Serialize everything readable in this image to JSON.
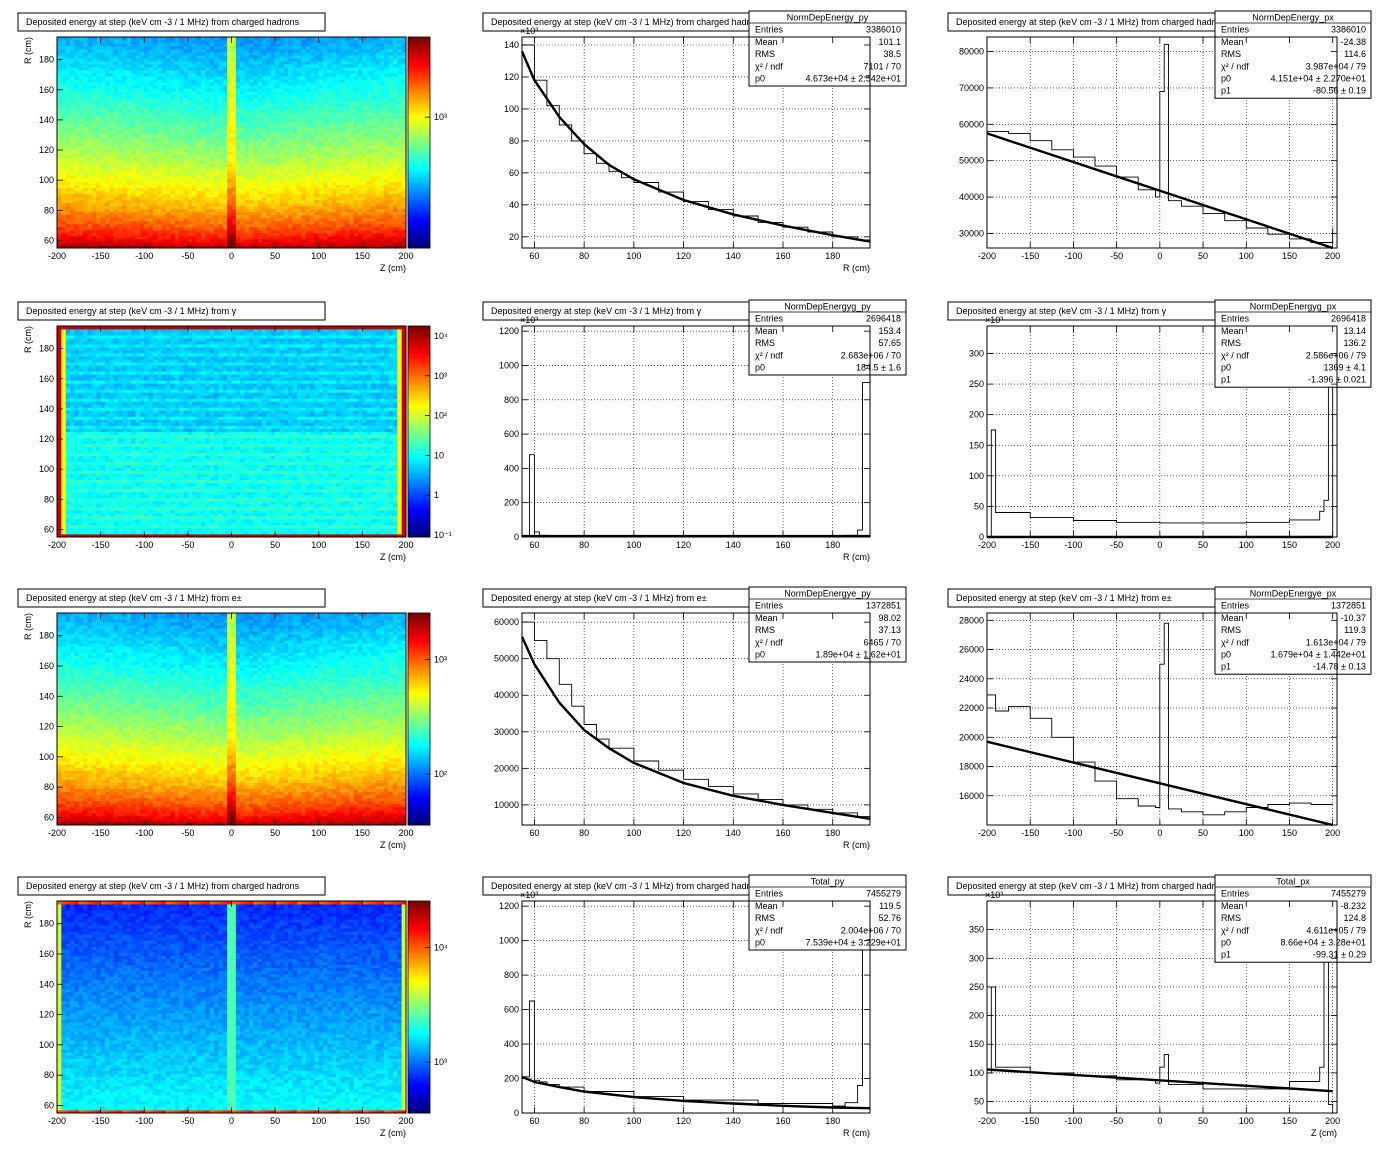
{
  "colors": {
    "frame": "#000000",
    "background": "#ffffff",
    "fit": "#000000"
  },
  "chart_data": [
    {
      "type": "heatmap",
      "panel": "r0c0",
      "title": "Deposited energy at step (keV cm  -3 / 1 MHz)  from   charged hadrons",
      "xlabel": "Z (cm)",
      "ylabel": "R (cm)",
      "xlim": [
        -200,
        200
      ],
      "ylim": [
        55,
        195
      ],
      "xticks": [
        "-200",
        "-150",
        "-100",
        "-50",
        "0",
        "50",
        "100",
        "150",
        "200"
      ],
      "yticks": [
        "60",
        "80",
        "100",
        "120",
        "140",
        "160",
        "180"
      ],
      "zscale": "log",
      "zticklabels": [
        "10³"
      ],
      "pattern": "radial_falloff_with_center_line"
    },
    {
      "type": "line",
      "panel": "r0c1",
      "title": "Deposited energy at step (keV cm  -3 / 1 MHz)  from   charged hadrons",
      "xlabel": "R (cm)",
      "ylabel": "",
      "xlim": [
        55,
        195
      ],
      "ylim": [
        13,
        145
      ],
      "exponent": "×10³",
      "xticks": [
        "60",
        "80",
        "100",
        "120",
        "140",
        "160",
        "180"
      ],
      "yticks": [
        "20",
        "40",
        "60",
        "80",
        "100",
        "120",
        "140"
      ],
      "stats": {
        "name": "NormDepEnergy_py",
        "rows": [
          [
            "Entries",
            "3386010"
          ],
          [
            "Mean",
            "101.1"
          ],
          [
            "RMS",
            "38.5"
          ],
          [
            "χ² / ndf",
            "7101 / 70"
          ],
          [
            "p0",
            "4.673e+04 ± 2.542e+01"
          ]
        ]
      },
      "histogram": {
        "x": [
          55,
          60,
          65,
          70,
          75,
          80,
          85,
          90,
          95,
          100,
          110,
          120,
          130,
          140,
          150,
          160,
          170,
          180,
          190,
          195
        ],
        "y": [
          140,
          118,
          102,
          90,
          80,
          72,
          66,
          61,
          57,
          54,
          48,
          42,
          37,
          33,
          29,
          26,
          23,
          20,
          18,
          17
        ]
      },
      "fit": {
        "x": [
          55,
          60,
          70,
          80,
          90,
          100,
          120,
          140,
          160,
          180,
          195
        ],
        "y": [
          136,
          118,
          95,
          78,
          65,
          56,
          43,
          34,
          27,
          21,
          17
        ]
      }
    },
    {
      "type": "line",
      "panel": "r0c2",
      "title": "Deposited energy at step (keV cm  -3 / 1 MHz)  from   charged hadrons",
      "xlabel": "",
      "ylabel": "",
      "xlim": [
        -200,
        205
      ],
      "ylim": [
        26000,
        84000
      ],
      "xticks": [
        "-200",
        "-150",
        "-100",
        "-50",
        "0",
        "50",
        "100",
        "150",
        "200"
      ],
      "yticks": [
        "30000",
        "40000",
        "50000",
        "60000",
        "70000",
        "80000"
      ],
      "stats": {
        "name": "NormDepEnergy_px",
        "rows": [
          [
            "Entries",
            "3386010"
          ],
          [
            "Mean",
            "-24.38"
          ],
          [
            "RMS",
            "114.6"
          ],
          [
            "χ² / ndf",
            "3.987e+04 / 79"
          ],
          [
            "p0",
            "4.151e+04 ± 2.270e+01"
          ],
          [
            "p1",
            "-80.56 ± 0.19"
          ]
        ]
      },
      "histogram": {
        "x": [
          -200,
          -175,
          -150,
          -125,
          -100,
          -75,
          -50,
          -25,
          -5,
          0,
          5,
          10,
          25,
          50,
          75,
          100,
          125,
          150,
          175,
          200
        ],
        "y": [
          58000,
          57500,
          55500,
          53000,
          51000,
          48500,
          45500,
          42000,
          40000,
          69000,
          82000,
          39000,
          37500,
          35500,
          33500,
          31500,
          29800,
          28500,
          27500,
          31500
        ]
      },
      "fit": {
        "x": [
          -200,
          200
        ],
        "y": [
          57500,
          25500
        ]
      }
    },
    {
      "type": "heatmap",
      "panel": "r1c0",
      "title": "Deposited energy at step (keV cm   -3 / 1 MHz)  from    γ",
      "xlabel": "Z (cm)",
      "ylabel": "R (cm)",
      "xlim": [
        -200,
        200
      ],
      "ylim": [
        55,
        195
      ],
      "xticks": [
        "-200",
        "-150",
        "-100",
        "-50",
        "0",
        "50",
        "100",
        "150",
        "200"
      ],
      "yticks": [
        "60",
        "80",
        "100",
        "120",
        "140",
        "160",
        "180"
      ],
      "zscale": "log",
      "zticklabels": [
        "10⁴",
        "10³",
        "10²",
        "10",
        "1",
        "10⁻¹"
      ],
      "pattern": "uniform_with_hot_border"
    },
    {
      "type": "line",
      "panel": "r1c1",
      "title": "Deposited energy at step (keV cm   -3 / 1 MHz)  from    γ",
      "xlabel": "R (cm)",
      "ylabel": "",
      "xlim": [
        55,
        195
      ],
      "ylim": [
        0,
        1230
      ],
      "exponent": "×10³",
      "xticks": [
        "60",
        "80",
        "100",
        "120",
        "140",
        "160",
        "180"
      ],
      "yticks": [
        "0",
        "200",
        "400",
        "600",
        "800",
        "1000",
        "1200"
      ],
      "stats": {
        "name": "NormDepEnergyg_py",
        "rows": [
          [
            "Entries",
            "2696418"
          ],
          [
            "Mean",
            "153.4"
          ],
          [
            "RMS",
            "57.65"
          ],
          [
            "χ² / ndf",
            "2.683e+06 / 70"
          ],
          [
            "p0",
            "184.5 ± 1.6"
          ]
        ]
      },
      "histogram": {
        "x": [
          55,
          58,
          60,
          62,
          65,
          70,
          100,
          150,
          180,
          185,
          190,
          192,
          195
        ],
        "y": [
          0,
          480,
          30,
          10,
          6,
          5,
          5,
          5,
          5,
          10,
          40,
          900,
          540
        ]
      },
      "fit": {
        "x": [
          55,
          195
        ],
        "y": [
          5,
          5
        ]
      }
    },
    {
      "type": "line",
      "panel": "r1c2",
      "title": "Deposited energy at step (keV cm   -3 / 1 MHz)  from    γ",
      "xlabel": "",
      "ylabel": "",
      "xlim": [
        -200,
        205
      ],
      "ylim": [
        0,
        345
      ],
      "exponent": "×10³",
      "xticks": [
        "-200",
        "-150",
        "-100",
        "-50",
        "0",
        "50",
        "100",
        "150",
        "200"
      ],
      "yticks": [
        "0",
        "50",
        "100",
        "150",
        "200",
        "250",
        "300"
      ],
      "stats": {
        "name": "NormDepEnergyg_px",
        "rows": [
          [
            "Entries",
            "2696418"
          ],
          [
            "Mean",
            "13.14"
          ],
          [
            "RMS",
            "136.2"
          ],
          [
            "χ² / ndf",
            "2.586e+06 / 79"
          ],
          [
            "p0",
            "1369 ± 4.1"
          ],
          [
            "p1",
            "-1.396 ± 0.021"
          ]
        ]
      },
      "histogram": {
        "x": [
          -200,
          -195,
          -190,
          -150,
          -100,
          -50,
          0,
          50,
          100,
          150,
          185,
          190,
          195,
          200
        ],
        "y": [
          0,
          175,
          40,
          32,
          27,
          24,
          23,
          23,
          24,
          28,
          42,
          60,
          340,
          0
        ]
      },
      "fit": {
        "x": [
          -200,
          200
        ],
        "y": [
          0,
          0
        ]
      }
    },
    {
      "type": "heatmap",
      "panel": "r2c0",
      "title": "Deposited energy at step (keV cm   -3 / 1 MHz)  from    e±",
      "xlabel": "Z (cm)",
      "ylabel": "R (cm)",
      "xlim": [
        -200,
        200
      ],
      "ylim": [
        55,
        195
      ],
      "xticks": [
        "-200",
        "-150",
        "-100",
        "-50",
        "0",
        "50",
        "100",
        "150",
        "200"
      ],
      "yticks": [
        "60",
        "80",
        "100",
        "120",
        "140",
        "160",
        "180"
      ],
      "zscale": "log",
      "zticklabels": [
        "10³",
        "10²"
      ],
      "pattern": "radial_falloff_with_center_line"
    },
    {
      "type": "line",
      "panel": "r2c1",
      "title": "Deposited energy at step (keV cm   -3 / 1 MHz)  from    e±",
      "xlabel": "R (cm)",
      "ylabel": "",
      "xlim": [
        55,
        195
      ],
      "ylim": [
        4500,
        62500
      ],
      "xticks": [
        "60",
        "80",
        "100",
        "120",
        "140",
        "160",
        "180"
      ],
      "yticks": [
        "10000",
        "20000",
        "30000",
        "40000",
        "50000",
        "60000"
      ],
      "stats": {
        "name": "NormDepEnergye_py",
        "rows": [
          [
            "Entries",
            "1372851"
          ],
          [
            "Mean",
            "98.02"
          ],
          [
            "RMS",
            "37.13"
          ],
          [
            "χ² / ndf",
            "6465 / 70"
          ],
          [
            "p0",
            "1.89e+04 ± 1.62e+01"
          ]
        ]
      },
      "histogram": {
        "x": [
          55,
          60,
          65,
          70,
          75,
          80,
          85,
          90,
          100,
          110,
          120,
          130,
          140,
          150,
          160,
          170,
          180,
          190,
          195
        ],
        "y": [
          60000,
          55000,
          50000,
          43000,
          37000,
          32000,
          28000,
          25500,
          22000,
          19500,
          17000,
          15000,
          13000,
          11500,
          10000,
          8800,
          7800,
          6800,
          6000
        ]
      },
      "fit": {
        "x": [
          55,
          60,
          70,
          80,
          90,
          100,
          120,
          140,
          160,
          180,
          195
        ],
        "y": [
          56000,
          48500,
          38000,
          30500,
          25500,
          21500,
          16000,
          12500,
          10000,
          7800,
          6200
        ]
      }
    },
    {
      "type": "line",
      "panel": "r2c2",
      "title": "Deposited energy at step (keV cm   -3 / 1 MHz)  from    e±",
      "xlabel": "",
      "ylabel": "",
      "xlim": [
        -200,
        205
      ],
      "ylim": [
        14000,
        28500
      ],
      "xticks": [
        "-200",
        "-150",
        "-100",
        "-50",
        "0",
        "50",
        "100",
        "150",
        "200"
      ],
      "yticks": [
        "16000",
        "18000",
        "20000",
        "22000",
        "24000",
        "26000",
        "28000"
      ],
      "stats": {
        "name": "NormDepEnergye_px",
        "rows": [
          [
            "Entries",
            "1372851"
          ],
          [
            "Mean",
            "-10.37"
          ],
          [
            "RMS",
            "119.3"
          ],
          [
            "χ² / ndf",
            "1.613e+04 / 79"
          ],
          [
            "p0",
            "1.679e+04 ± 1.442e+01"
          ],
          [
            "p1",
            "-14.78 ± 0.13"
          ]
        ]
      },
      "histogram": {
        "x": [
          -200,
          -190,
          -175,
          -150,
          -125,
          -100,
          -75,
          -50,
          -25,
          -5,
          0,
          5,
          10,
          25,
          50,
          75,
          100,
          125,
          150,
          175,
          200
        ],
        "y": [
          22900,
          21800,
          22100,
          21300,
          20000,
          18300,
          17000,
          15800,
          15300,
          15200,
          25000,
          27800,
          15100,
          14900,
          14700,
          14900,
          15200,
          15400,
          15500,
          15400,
          15400
        ]
      },
      "fit": {
        "x": [
          -200,
          200
        ],
        "y": [
          19700,
          14000
        ]
      }
    },
    {
      "type": "heatmap",
      "panel": "r3c0",
      "title": "Deposited energy at step (keV cm  -3 / 1 MHz)  from   charged hadrons",
      "xlabel": "Z (cm)",
      "ylabel": "R (cm)",
      "xlim": [
        -200,
        200
      ],
      "ylim": [
        55,
        195
      ],
      "xticks": [
        "-200",
        "-150",
        "-100",
        "-50",
        "0",
        "50",
        "100",
        "150",
        "200"
      ],
      "yticks": [
        "60",
        "80",
        "100",
        "120",
        "140",
        "160",
        "180"
      ],
      "zscale": "log",
      "zticklabels": [
        "10⁴",
        "10³"
      ],
      "pattern": "total_with_hot_border"
    },
    {
      "type": "line",
      "panel": "r3c1",
      "title": "Deposited energy at step (keV cm  -3 / 1 MHz)  from   charged hadrons",
      "xlabel": "R (cm)",
      "ylabel": "",
      "xlim": [
        55,
        195
      ],
      "ylim": [
        0,
        1230
      ],
      "exponent": "×10³",
      "xticks": [
        "60",
        "80",
        "100",
        "120",
        "140",
        "160",
        "180"
      ],
      "yticks": [
        "0",
        "200",
        "400",
        "600",
        "800",
        "1000",
        "1200"
      ],
      "stats": {
        "name": "Total_py",
        "rows": [
          [
            "Entries",
            "7455279"
          ],
          [
            "Mean",
            "119.5"
          ],
          [
            "RMS",
            "52.76"
          ],
          [
            "χ² / ndf",
            "2.004e+06 / 70"
          ],
          [
            "p0",
            "7.539e+04 ± 3.229e+01"
          ]
        ]
      },
      "histogram": {
        "x": [
          55,
          58,
          60,
          62,
          65,
          70,
          80,
          100,
          120,
          150,
          180,
          185,
          190,
          192,
          195
        ],
        "y": [
          210,
          650,
          190,
          180,
          165,
          150,
          125,
          95,
          75,
          55,
          40,
          60,
          160,
          950,
          560
        ]
      },
      "fit": {
        "x": [
          55,
          60,
          70,
          80,
          100,
          120,
          140,
          160,
          180,
          195
        ],
        "y": [
          210,
          180,
          150,
          125,
          92,
          70,
          55,
          42,
          32,
          28
        ]
      }
    },
    {
      "type": "line",
      "panel": "r3c2",
      "title": "Deposited energy at step (keV cm  -3 / 1 MHz)  from   charged hadrons",
      "xlabel": "Z (cm)",
      "ylabel": "",
      "xlim": [
        -200,
        205
      ],
      "ylim": [
        30,
        400
      ],
      "exponent": "×10³",
      "xticks": [
        "-200",
        "-150",
        "-100",
        "-50",
        "0",
        "50",
        "100",
        "150",
        "200"
      ],
      "yticks": [
        "50",
        "100",
        "150",
        "200",
        "250",
        "300",
        "350"
      ],
      "stats": {
        "name": "Total_px",
        "rows": [
          [
            "Entries",
            "7455279"
          ],
          [
            "Mean",
            "-8.232"
          ],
          [
            "RMS",
            "124.8"
          ],
          [
            "χ² / ndf",
            "4.611e+05 / 79"
          ],
          [
            "p0",
            "8.66e+04 ± 3.28e+01"
          ],
          [
            "p1",
            "-99.31 ± 0.29"
          ]
        ]
      },
      "histogram": {
        "x": [
          -200,
          -195,
          -190,
          -150,
          -100,
          -50,
          -5,
          0,
          5,
          10,
          50,
          100,
          150,
          185,
          190,
          195,
          200
        ],
        "y": [
          100,
          250,
          110,
          100,
          95,
          88,
          82,
          110,
          132,
          80,
          72,
          72,
          85,
          110,
          360,
          45,
          40
        ]
      },
      "fit": {
        "x": [
          -200,
          200
        ],
        "y": [
          106,
          68
        ]
      }
    }
  ]
}
